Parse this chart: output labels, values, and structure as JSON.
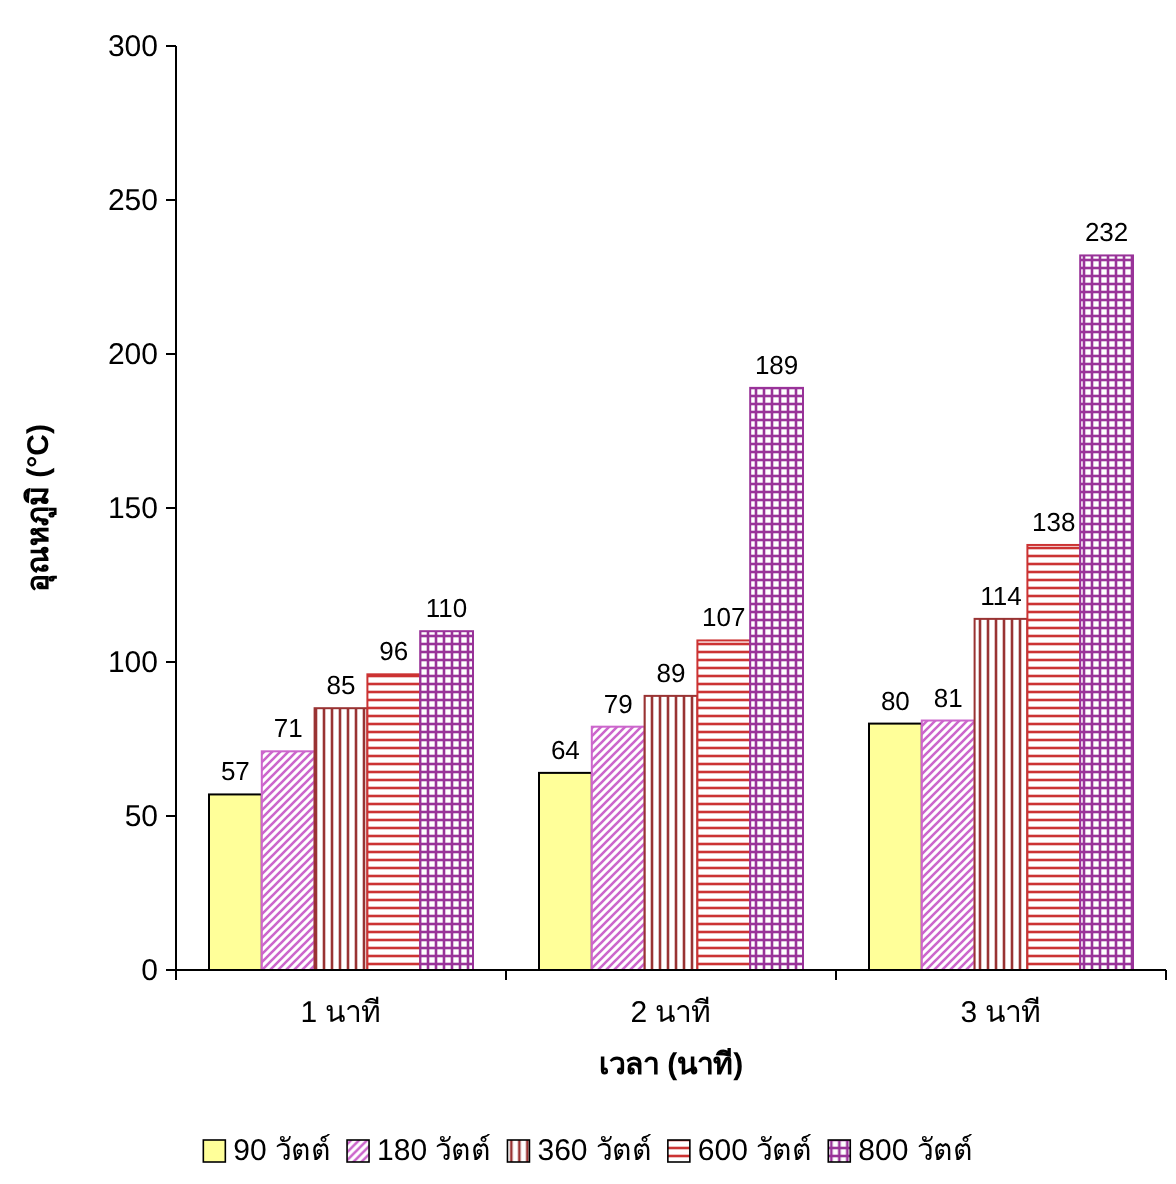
{
  "chart_data": {
    "type": "bar",
    "xlabel": "เวลา (นาที)",
    "ylabel": "อุณหภูมิ (°C)",
    "categories": [
      "1 นาที",
      "2 นาที",
      "3 นาที"
    ],
    "series": [
      {
        "name": "90 วัตต์",
        "color": "#ffff99",
        "values": [
          57,
          64,
          80
        ]
      },
      {
        "name": "180 วัตต์",
        "color": "#cc66cc",
        "values": [
          71,
          79,
          81
        ]
      },
      {
        "name": "360 วัตต์",
        "color": "#993333",
        "values": [
          85,
          89,
          114
        ]
      },
      {
        "name": "600 วัตต์",
        "color": "#cc3333",
        "values": [
          96,
          107,
          138
        ]
      },
      {
        "name": "800 วัตต์",
        "color": "#993399",
        "values": [
          110,
          189,
          232
        ]
      }
    ],
    "ylim": [
      0,
      300
    ],
    "yticks": [
      0,
      50,
      100,
      150,
      200,
      250,
      300
    ],
    "data_labels": true,
    "legend": "bottom",
    "grid": false
  }
}
